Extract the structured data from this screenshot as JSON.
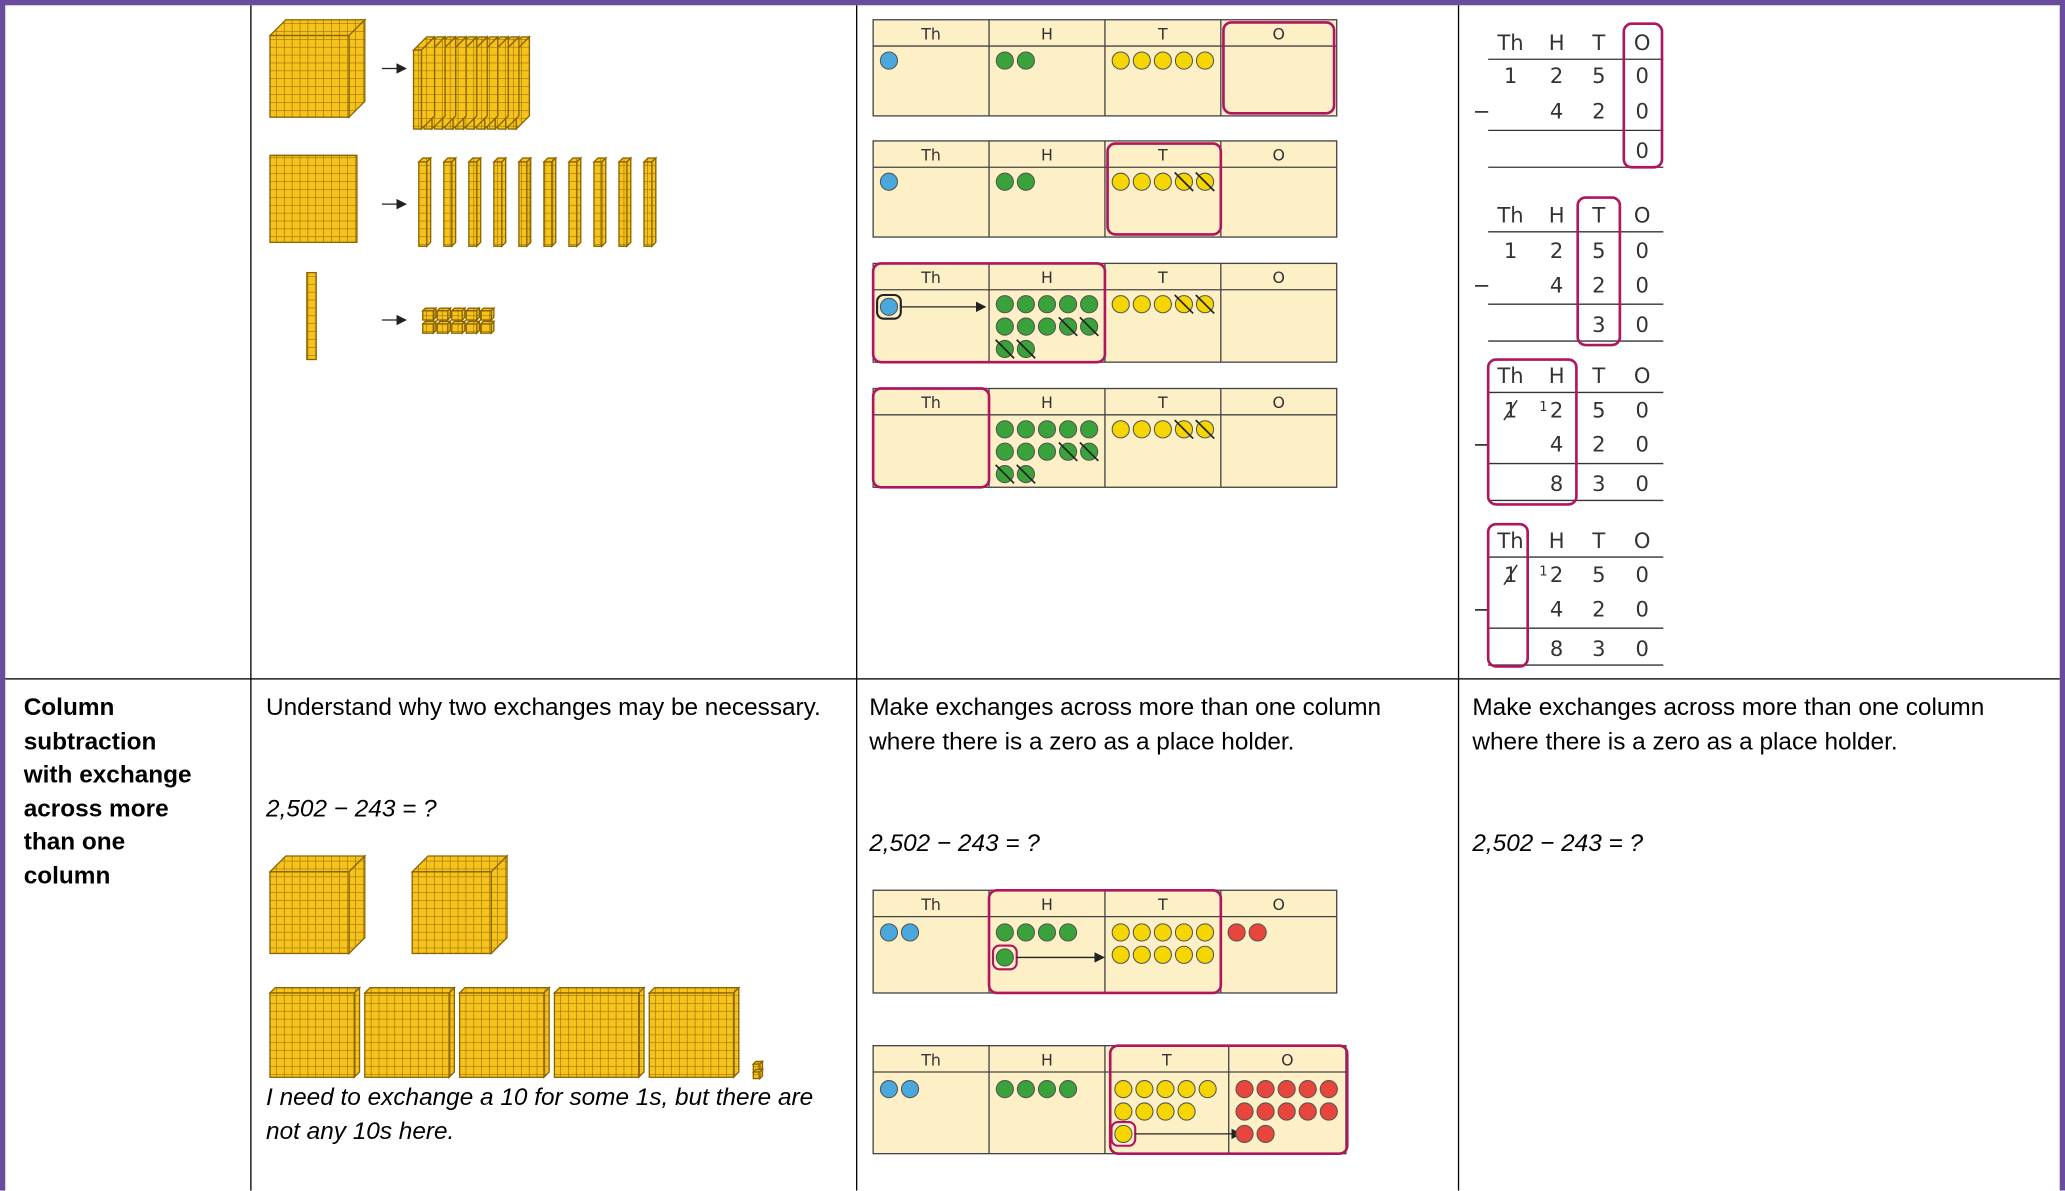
{
  "row_1": {
    "pictorial": {
      "charts": [
        {
          "headers": [
            "Th",
            "H",
            "T",
            "O"
          ]
        },
        {
          "headers": [
            "Th",
            "H",
            "T",
            "O"
          ]
        },
        {
          "headers": [
            "Th",
            "H",
            "T",
            "O"
          ]
        },
        {
          "headers": [
            "Th",
            "H",
            "T",
            "O"
          ]
        }
      ]
    },
    "abstract": {
      "calculations": [
        {
          "headers": [
            "Th",
            "H",
            "T",
            "O"
          ],
          "rows": [
            [
              "1",
              "2",
              "5",
              "0"
            ],
            [
              "4",
              "2",
              "0"
            ]
          ],
          "operator": "−",
          "answer": [
            "0"
          ]
        },
        {
          "headers": [
            "Th",
            "H",
            "T",
            "O"
          ],
          "rows": [
            [
              "1",
              "2",
              "5",
              "0"
            ],
            [
              "4",
              "2",
              "0"
            ]
          ],
          "operator": "−",
          "answer": [
            "3",
            "0"
          ]
        },
        {
          "headers": [
            "Th",
            "H",
            "T",
            "O"
          ],
          "rows": [
            [
              "1",
              "2",
              "5",
              "0"
            ],
            [
              "4",
              "2",
              "0"
            ]
          ],
          "operator": "−",
          "answer": [
            "8",
            "3",
            "0"
          ],
          "carry": "1"
        },
        {
          "headers": [
            "Th",
            "H",
            "T",
            "O"
          ],
          "rows": [
            [
              "1",
              "2",
              "5",
              "0"
            ],
            [
              "4",
              "2",
              "0"
            ]
          ],
          "operator": "−",
          "answer": [
            "8",
            "3",
            "0"
          ],
          "carry": "1"
        }
      ]
    }
  },
  "row_2": {
    "heading": "Column subtraction with exchange across more than one column",
    "concrete": {
      "text": "Understand why two exchanges may be necessary.",
      "equation": "2,502 − 243 = ?",
      "note": "I need to exchange a 10 for some 1s, but there are not any 10s here."
    },
    "pictorial": {
      "text": "Make exchanges across more than one column where there is a zero as a place holder.",
      "equation": "2,502 − 243 = ?",
      "charts": [
        {
          "headers": [
            "Th",
            "H",
            "T",
            "O"
          ]
        },
        {
          "headers": [
            "Th",
            "H",
            "T",
            "O"
          ]
        }
      ]
    },
    "abstract": {
      "text": "Make exchanges across more than one column where there is a zero as a place holder.",
      "equation": "2,502 − 243 = ?"
    }
  }
}
